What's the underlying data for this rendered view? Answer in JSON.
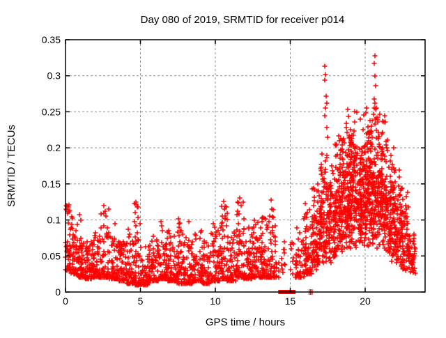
{
  "chart_data": {
    "type": "scatter",
    "title": "Day 080 of 2019, SRMTID for receiver p014",
    "xlabel": "GPS time / hours",
    "ylabel": "SRMTID / TECUs",
    "xlim": [
      0,
      24
    ],
    "ylim": [
      0,
      0.35
    ],
    "xticks": [
      0,
      5,
      10,
      15,
      20
    ],
    "yticks": [
      0,
      0.05,
      0.1,
      0.15,
      0.2,
      0.25,
      0.3,
      0.35
    ],
    "grid": {
      "show": true,
      "style": "dashed",
      "color": "#909090"
    },
    "legend": "none",
    "marker": {
      "shape": "plus",
      "color": "#ff0000",
      "size": 7,
      "stroke_width": 1.5
    },
    "border_color": "#000000",
    "seed": 20190080,
    "zero_bar": {
      "x_start": 14.2,
      "x_end": 15.35,
      "y": 0
    },
    "zero_marks_x": [
      16.26,
      16.36,
      16.46
    ],
    "clusters_columns": [
      "x_start",
      "x_end",
      "n_points",
      "y_min",
      "y_max",
      "skew",
      "dist"
    ],
    "clusters": [
      [
        0.0,
        0.35,
        45,
        0.03,
        0.122,
        2.0,
        "pow"
      ],
      [
        0.35,
        0.8,
        50,
        0.025,
        0.105,
        2.3,
        "pow"
      ],
      [
        0.8,
        1.3,
        55,
        0.02,
        0.08,
        2.2,
        "pow"
      ],
      [
        1.3,
        1.8,
        55,
        0.018,
        0.07,
        2.2,
        "pow"
      ],
      [
        1.8,
        2.3,
        55,
        0.02,
        0.085,
        2.4,
        "pow"
      ],
      [
        2.3,
        2.9,
        60,
        0.02,
        0.12,
        2.8,
        "pow"
      ],
      [
        2.9,
        3.5,
        60,
        0.018,
        0.085,
        2.5,
        "pow"
      ],
      [
        3.5,
        4.1,
        60,
        0.015,
        0.07,
        2.3,
        "pow"
      ],
      [
        4.1,
        4.6,
        55,
        0.012,
        0.09,
        2.5,
        "pow"
      ],
      [
        4.6,
        5.0,
        50,
        0.01,
        0.126,
        2.9,
        "pow"
      ],
      [
        5.0,
        5.6,
        60,
        0.01,
        0.065,
        2.2,
        "pow"
      ],
      [
        5.6,
        6.2,
        60,
        0.015,
        0.08,
        2.4,
        "pow"
      ],
      [
        6.2,
        6.8,
        60,
        0.018,
        0.095,
        2.6,
        "pow"
      ],
      [
        6.8,
        7.4,
        60,
        0.015,
        0.085,
        2.5,
        "pow"
      ],
      [
        7.4,
        7.9,
        55,
        0.012,
        0.1,
        2.7,
        "pow"
      ],
      [
        7.9,
        8.5,
        60,
        0.012,
        0.08,
        2.5,
        "pow"
      ],
      [
        8.5,
        9.1,
        60,
        0.015,
        0.085,
        2.5,
        "pow"
      ],
      [
        9.1,
        9.7,
        60,
        0.012,
        0.075,
        2.4,
        "pow"
      ],
      [
        9.7,
        10.3,
        60,
        0.015,
        0.095,
        2.6,
        "pow"
      ],
      [
        10.3,
        10.8,
        55,
        0.018,
        0.126,
        2.9,
        "pow"
      ],
      [
        10.8,
        11.4,
        60,
        0.015,
        0.085,
        2.5,
        "pow"
      ],
      [
        11.4,
        11.9,
        55,
        0.02,
        0.13,
        2.9,
        "pow"
      ],
      [
        11.9,
        12.5,
        60,
        0.018,
        0.09,
        2.5,
        "pow"
      ],
      [
        12.5,
        13.1,
        60,
        0.02,
        0.1,
        2.6,
        "pow"
      ],
      [
        13.1,
        13.7,
        60,
        0.02,
        0.105,
        2.6,
        "pow"
      ],
      [
        13.7,
        14.05,
        35,
        0.02,
        0.128,
        2.8,
        "pow"
      ],
      [
        14.05,
        14.25,
        8,
        0.02,
        0.05,
        2.0,
        "pow"
      ],
      [
        14.35,
        14.7,
        10,
        0.015,
        0.08,
        1.5,
        "pow"
      ],
      [
        15.0,
        15.35,
        8,
        0.025,
        0.09,
        1.6,
        "pow"
      ],
      [
        15.35,
        15.9,
        45,
        0.02,
        0.09,
        2.2,
        "pow"
      ],
      [
        15.9,
        16.45,
        70,
        0.025,
        0.115,
        2.4,
        "pow"
      ],
      [
        16.45,
        17.0,
        90,
        0.03,
        0.16,
        1.6,
        "tri"
      ],
      [
        17.0,
        17.5,
        90,
        0.035,
        0.22,
        1.5,
        "tri"
      ],
      [
        17.5,
        18.0,
        95,
        0.04,
        0.21,
        1.5,
        "tri"
      ],
      [
        18.0,
        18.5,
        110,
        0.05,
        0.235,
        1.4,
        "tri"
      ],
      [
        18.5,
        19.0,
        115,
        0.055,
        0.25,
        1.4,
        "tri"
      ],
      [
        19.0,
        19.5,
        120,
        0.06,
        0.26,
        1.4,
        "tri"
      ],
      [
        19.5,
        20.0,
        120,
        0.06,
        0.26,
        1.4,
        "tri"
      ],
      [
        20.0,
        20.5,
        125,
        0.06,
        0.27,
        1.4,
        "tri"
      ],
      [
        20.5,
        21.0,
        125,
        0.055,
        0.27,
        1.4,
        "tri"
      ],
      [
        21.0,
        21.5,
        115,
        0.05,
        0.25,
        1.4,
        "tri"
      ],
      [
        21.5,
        22.0,
        100,
        0.04,
        0.21,
        1.5,
        "tri"
      ],
      [
        22.0,
        22.5,
        80,
        0.035,
        0.17,
        1.6,
        "tri"
      ],
      [
        22.5,
        23.0,
        70,
        0.03,
        0.145,
        1.7,
        "tri"
      ],
      [
        23.0,
        23.35,
        35,
        0.025,
        0.1,
        1.8,
        "tri"
      ]
    ],
    "outlier_points": [
      [
        0.22,
        0.121
      ],
      [
        0.3,
        0.113
      ],
      [
        0.95,
        0.107
      ],
      [
        1.0,
        0.1
      ],
      [
        2.58,
        0.12
      ],
      [
        2.66,
        0.112
      ],
      [
        2.72,
        0.105
      ],
      [
        3.3,
        0.095
      ],
      [
        4.72,
        0.125
      ],
      [
        4.78,
        0.118
      ],
      [
        4.66,
        0.11
      ],
      [
        4.84,
        0.103
      ],
      [
        6.35,
        0.098
      ],
      [
        7.55,
        0.102
      ],
      [
        7.6,
        0.095
      ],
      [
        8.25,
        0.098
      ],
      [
        9.85,
        0.095
      ],
      [
        10.55,
        0.126
      ],
      [
        10.62,
        0.115
      ],
      [
        10.48,
        0.105
      ],
      [
        11.65,
        0.131
      ],
      [
        11.72,
        0.12
      ],
      [
        11.58,
        0.108
      ],
      [
        12.6,
        0.1
      ],
      [
        12.68,
        0.094
      ],
      [
        13.35,
        0.102
      ],
      [
        13.7,
        0.128
      ],
      [
        13.78,
        0.115
      ],
      [
        13.64,
        0.105
      ],
      [
        16.02,
        0.123
      ],
      [
        16.88,
        0.14
      ],
      [
        16.95,
        0.133
      ],
      [
        17.28,
        0.294
      ],
      [
        17.3,
        0.313
      ],
      [
        17.33,
        0.302
      ],
      [
        17.38,
        0.272
      ],
      [
        17.42,
        0.262
      ],
      [
        17.36,
        0.255
      ],
      [
        17.3,
        0.245
      ],
      [
        17.44,
        0.228
      ],
      [
        17.5,
        0.215
      ],
      [
        18.3,
        0.21
      ],
      [
        18.82,
        0.253
      ],
      [
        18.88,
        0.244
      ],
      [
        19.3,
        0.25
      ],
      [
        19.9,
        0.246
      ],
      [
        20.1,
        0.255
      ],
      [
        20.6,
        0.317
      ],
      [
        20.63,
        0.328
      ],
      [
        20.66,
        0.3
      ],
      [
        20.7,
        0.286
      ],
      [
        20.62,
        0.268
      ],
      [
        20.67,
        0.262
      ],
      [
        20.72,
        0.254
      ],
      [
        20.58,
        0.247
      ],
      [
        21.28,
        0.245
      ],
      [
        21.33,
        0.236
      ],
      [
        21.9,
        0.2
      ],
      [
        22.3,
        0.16
      ],
      [
        22.85,
        0.138
      ]
    ]
  }
}
